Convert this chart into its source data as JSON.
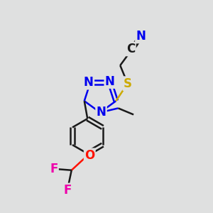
{
  "background_color": "#dfe0e0",
  "bond_color": "#1a1a1a",
  "N_color": "#0000ee",
  "S_color": "#ccaa00",
  "O_color": "#ff1100",
  "F_color": "#ee00aa",
  "C_color": "#1a1a1a",
  "line_width": 1.8,
  "font_size": 12,
  "figsize": [
    3.0,
    3.0
  ],
  "dpi": 100,
  "xlim": [
    0,
    10
  ],
  "ylim": [
    0,
    10
  ]
}
